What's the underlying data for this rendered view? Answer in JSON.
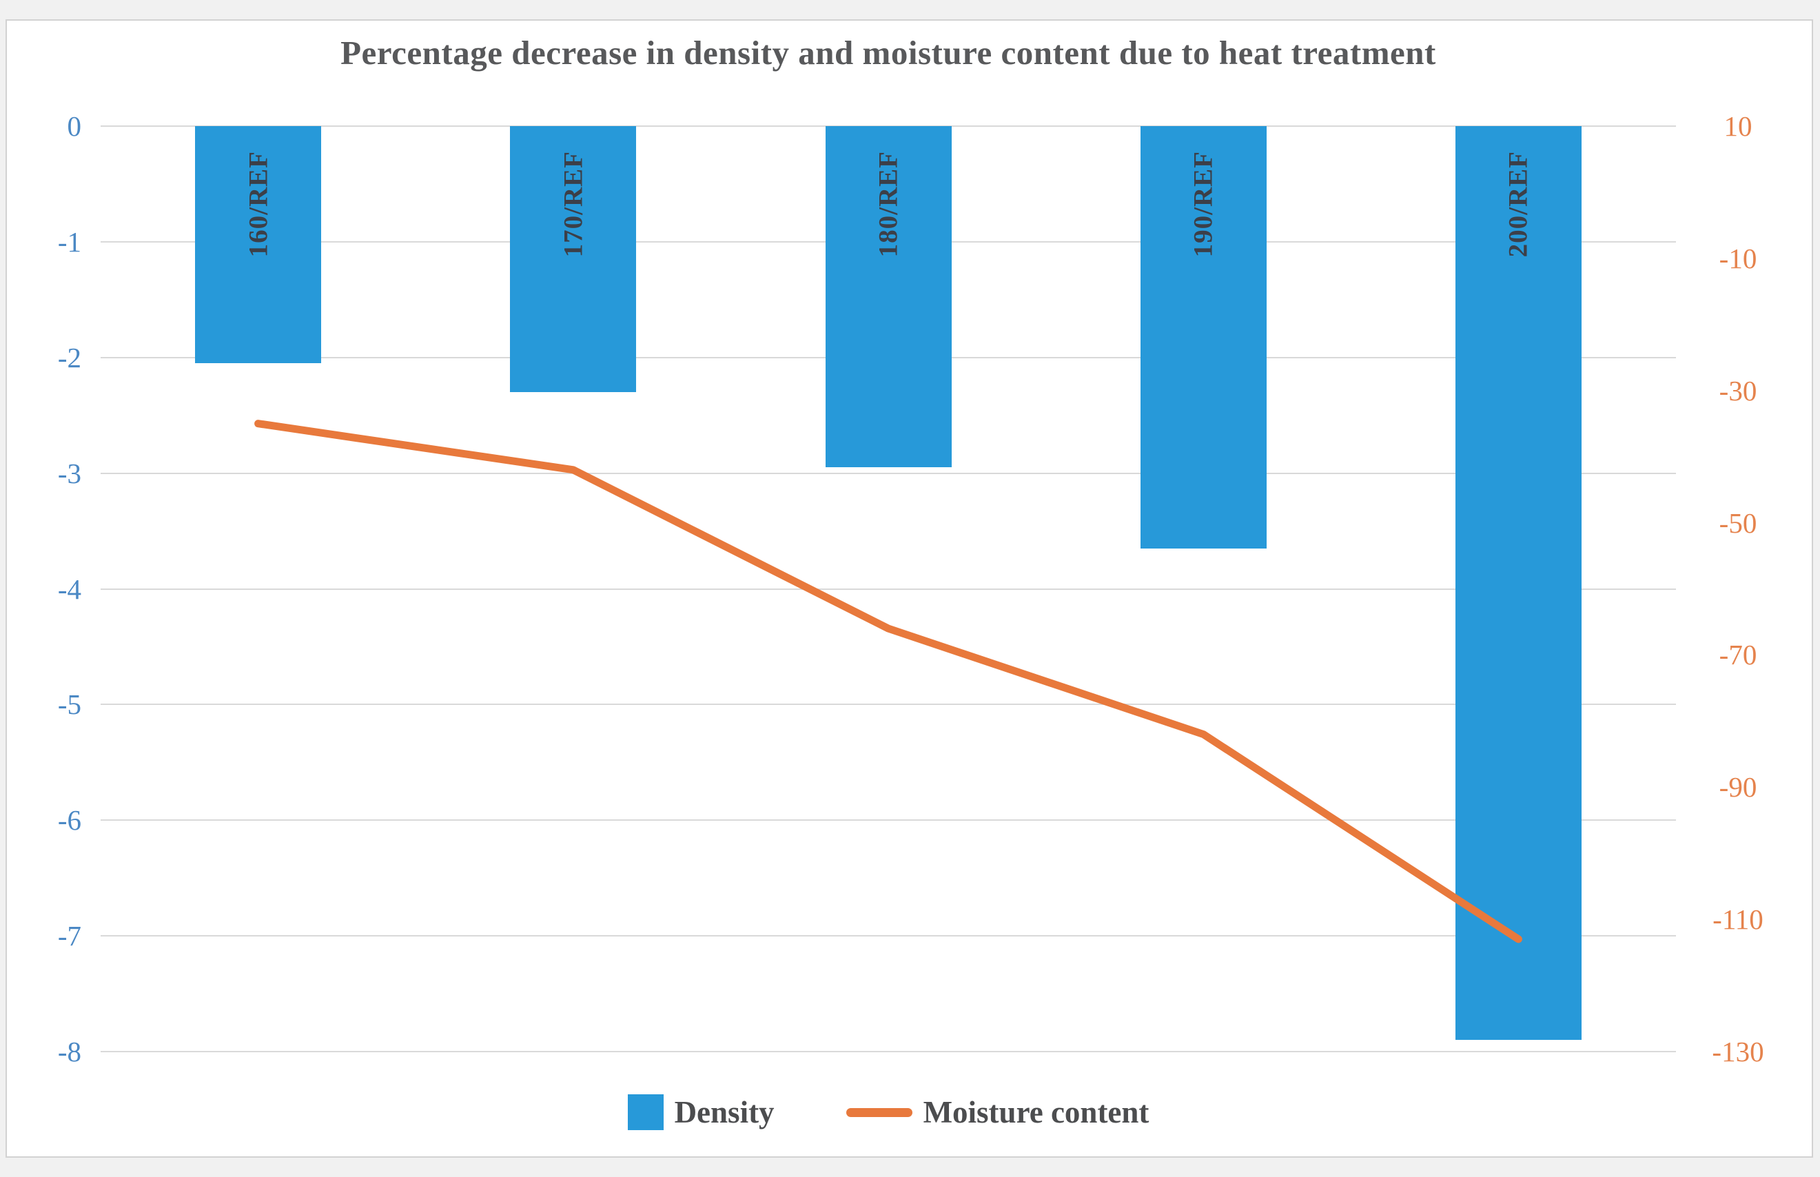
{
  "title": "Percentage decrease in density and moisture content due to heat treatment",
  "legend": {
    "density_label": "Density",
    "moisture_label": "Moisture content"
  },
  "colors": {
    "bar_fill": "#2799d9",
    "line_stroke": "#e8793c",
    "left_axis_text": "#4b88c4",
    "right_axis_text": "#e5834d",
    "bar_label_text": "#3c3f48",
    "gridline": "#d9d9d9",
    "title_text": "#58595b",
    "legend_text": "#4c4d4f"
  },
  "chart_data": {
    "type": "bar",
    "subtype": "combo-bar-line-dual-axis",
    "title": "Percentage decrease in density and moisture content due to heat treatment",
    "categories": [
      "160/REF",
      "170/REF",
      "180/REF",
      "190/REF",
      "200/REF"
    ],
    "series": [
      {
        "name": "Density",
        "type": "bar",
        "axis": "left",
        "values": [
          -2.05,
          -2.3,
          -2.95,
          -3.65,
          -7.9
        ]
      },
      {
        "name": "Moisture content",
        "type": "line",
        "axis": "right",
        "values": [
          -35,
          -42,
          -66,
          -82,
          -113
        ]
      }
    ],
    "left_axis": {
      "ticks": [
        0,
        -1,
        -2,
        -3,
        -4,
        -5,
        -6,
        -7,
        -8
      ],
      "range": [
        0,
        -8
      ]
    },
    "right_axis": {
      "ticks": [
        10,
        -10,
        -30,
        -50,
        -70,
        -90,
        -110,
        -130
      ],
      "range": [
        10,
        -130
      ]
    },
    "grid": "horizontal gridlines on primary (left) axis only",
    "legend_position": "bottom",
    "category_labels_placement": "rotated 90deg inside top of bars"
  }
}
